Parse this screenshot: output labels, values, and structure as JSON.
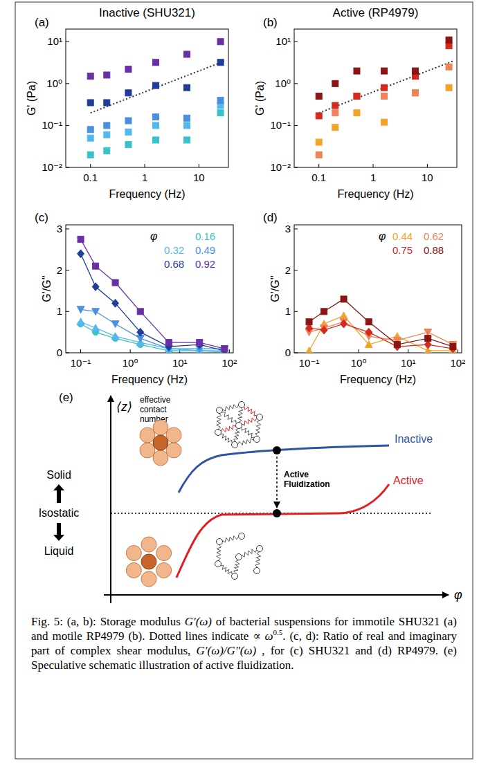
{
  "chart_data": [
    {
      "type": "scatter",
      "panel": "(a)",
      "title": "Inactive (SHU321)",
      "x_label": "Frequency (Hz)",
      "y_label": "G' (Pa)",
      "log": true,
      "grid": false,
      "marker": "square",
      "line_style": "none",
      "x": [
        0.1,
        0.2,
        0.5,
        1.6,
        6,
        25
      ],
      "xlim": [
        0.035,
        35
      ],
      "xticks": [
        0.1,
        1,
        10
      ],
      "ylim": [
        0.01,
        20
      ],
      "yticks": [
        {
          "value": 0.01,
          "label": "10⁻²"
        },
        {
          "value": 0.1,
          "label": "10⁻¹"
        },
        {
          "value": 1,
          "label": "10⁰"
        },
        {
          "value": 10,
          "label": "10¹"
        }
      ],
      "series": [
        {
          "color": "#38c3c8",
          "values": [
            0.02,
            0.025,
            0.035,
            0.045,
            0.045,
            0.2
          ]
        },
        {
          "color": "#55b8ee",
          "values": [
            0.05,
            0.06,
            0.07,
            0.1,
            0.1,
            0.3
          ]
        },
        {
          "color": "#4a8fe0",
          "values": [
            0.08,
            0.1,
            0.13,
            0.16,
            0.15,
            0.4
          ]
        },
        {
          "color": "#1f3d99",
          "values": [
            0.35,
            0.35,
            0.6,
            0.9,
            0.8,
            3.2
          ]
        },
        {
          "color": "#6a2fa8",
          "values": [
            1.5,
            1.6,
            2.2,
            3.2,
            5,
            10
          ]
        }
      ],
      "reference_line": {
        "x": [
          0.1,
          30
        ],
        "values": [
          0.2,
          3.46
        ],
        "line_style": "dotted"
      }
    },
    {
      "type": "scatter",
      "panel": "(b)",
      "title": "Active (RP4979)",
      "x_label": "Frequency (Hz)",
      "y_label": "G' (Pa)",
      "log": true,
      "grid": false,
      "marker": "square",
      "line_style": "none",
      "x": [
        0.1,
        0.2,
        0.5,
        1.6,
        6,
        25
      ],
      "xlim": [
        0.035,
        35
      ],
      "xticks": [
        0.1,
        1,
        10
      ],
      "ylim": [
        0.01,
        20
      ],
      "yticks": [
        {
          "value": 0.01,
          "label": "10⁻²"
        },
        {
          "value": 0.1,
          "label": "10⁻¹"
        },
        {
          "value": 1,
          "label": "10⁰"
        },
        {
          "value": 10,
          "label": "10¹"
        }
      ],
      "series": [
        {
          "color": "#f2a428",
          "values": [
            0.04,
            0.09,
            0.2,
            0.12,
            0.6,
            0.8
          ]
        },
        {
          "color": "#f08258",
          "values": [
            0.02,
            0.2,
            0.5,
            0.5,
            0.6,
            2.5
          ]
        },
        {
          "color": "#d42a1e",
          "values": [
            0.17,
            0.3,
            0.5,
            0.8,
            1.5,
            8
          ]
        },
        {
          "color": "#8c1414",
          "values": [
            0.5,
            1.0,
            2.0,
            2.0,
            2.0,
            11
          ]
        }
      ],
      "reference_line": {
        "x": [
          0.1,
          30
        ],
        "values": [
          0.2,
          3.46
        ],
        "line_style": "dotted"
      }
    },
    {
      "type": "line",
      "panel": "(c)",
      "x_label": "Frequency (Hz)",
      "y_label": "G'/G''",
      "log": "x",
      "grid": false,
      "line_style": "solid",
      "legend": "top-right",
      "legend_title": "φ",
      "x": [
        0.1,
        0.2,
        0.5,
        1.6,
        6,
        25,
        80
      ],
      "xlim": [
        0.05,
        120
      ],
      "xticks": [
        {
          "value": 0.1,
          "label": "10⁻¹"
        },
        {
          "value": 1,
          "label": "10⁰"
        },
        {
          "value": 10,
          "label": "10¹"
        },
        {
          "value": 100,
          "label": "10²"
        }
      ],
      "ylim": [
        0,
        3.1
      ],
      "yticks": [
        0,
        1,
        2,
        3
      ],
      "series": [
        {
          "name": "0.16",
          "color": "#38c3c8",
          "marker": "circle",
          "values": [
            0.7,
            0.5,
            0.35,
            0.2,
            0.05,
            0.05,
            0.02
          ]
        },
        {
          "name": "0.32",
          "color": "#55b8ee",
          "marker": "triangle-up",
          "values": [
            0.75,
            0.6,
            0.4,
            0.25,
            0.1,
            0.05,
            0.05
          ]
        },
        {
          "name": "0.49",
          "color": "#4a8fe0",
          "marker": "triangle-down",
          "values": [
            1.05,
            1.0,
            0.7,
            0.35,
            0.1,
            0.1,
            0.1
          ]
        },
        {
          "name": "0.68",
          "color": "#1f3d99",
          "marker": "diamond",
          "values": [
            2.4,
            1.6,
            1.2,
            0.5,
            0.15,
            0.2,
            0.05
          ]
        },
        {
          "name": "0.92",
          "color": "#6a2fa8",
          "marker": "square",
          "values": [
            2.75,
            2.1,
            1.7,
            1.0,
            0.25,
            0.25,
            0.1
          ]
        }
      ]
    },
    {
      "type": "line",
      "panel": "(d)",
      "x_label": "Frequency (Hz)",
      "y_label": "G'/G''",
      "log": "x",
      "grid": false,
      "line_style": "solid",
      "legend": "top-right",
      "legend_title": "φ",
      "x": [
        0.1,
        0.2,
        0.5,
        1.6,
        6,
        25,
        80
      ],
      "xlim": [
        0.05,
        120
      ],
      "xticks": [
        {
          "value": 0.1,
          "label": "10⁻¹"
        },
        {
          "value": 1,
          "label": "10⁰"
        },
        {
          "value": 10,
          "label": "10¹"
        },
        {
          "value": 100,
          "label": "10²"
        }
      ],
      "ylim": [
        0,
        3.1
      ],
      "yticks": [
        0,
        1,
        2,
        3
      ],
      "series": [
        {
          "name": "0.44",
          "color": "#f2a428",
          "marker": "triangle-up",
          "values": [
            0.05,
            0.7,
            0.9,
            0.2,
            0.4,
            0.05,
            0.05
          ]
        },
        {
          "name": "0.62",
          "color": "#f08258",
          "marker": "triangle-down",
          "values": [
            0.5,
            0.6,
            0.75,
            0.4,
            0.3,
            0.5,
            0.2
          ]
        },
        {
          "name": "0.75",
          "color": "#d42a1e",
          "marker": "diamond",
          "values": [
            0.6,
            0.55,
            0.7,
            0.5,
            0.15,
            0.2,
            0.1
          ]
        },
        {
          "name": "0.88",
          "color": "#8c1414",
          "marker": "square",
          "values": [
            0.75,
            1.0,
            1.3,
            0.75,
            0.2,
            0.35,
            0.15
          ]
        }
      ]
    }
  ],
  "diagram": {
    "panel": "(e)",
    "y_axis_symbol": "⟨z⟩",
    "y_axis_label": "effective contact number",
    "x_axis_symbol": "φ",
    "levels": [
      "Solid",
      "Isostatic",
      "Liquid"
    ],
    "curves": [
      {
        "label": "Inactive",
        "color": "#2e55a5"
      },
      {
        "label": "Active",
        "color": "#e02020"
      }
    ],
    "transition_label": "Active Fluidization"
  },
  "caption": {
    "runs": [
      {
        "text": "Fig. 5: (a, b): Storage modulus "
      },
      {
        "text": "G′(ω)",
        "italic": true
      },
      {
        "text": " of bacterial suspensions for immotile SHU321 (a) and motile RP4979 (b). Dotted lines indicate ∝ "
      },
      {
        "text": "ω",
        "italic": true
      },
      {
        "text": "0.5",
        "sup": true
      },
      {
        "text": ". (c, d): Ratio of real and imaginary part of complex shear modulus, "
      },
      {
        "text": "G′(ω)/G″(ω)",
        "italic": true
      },
      {
        "text": " , for (c) SHU321 and (d) RP4979. (e) Speculative schematic illustration of active fluidization."
      }
    ]
  }
}
